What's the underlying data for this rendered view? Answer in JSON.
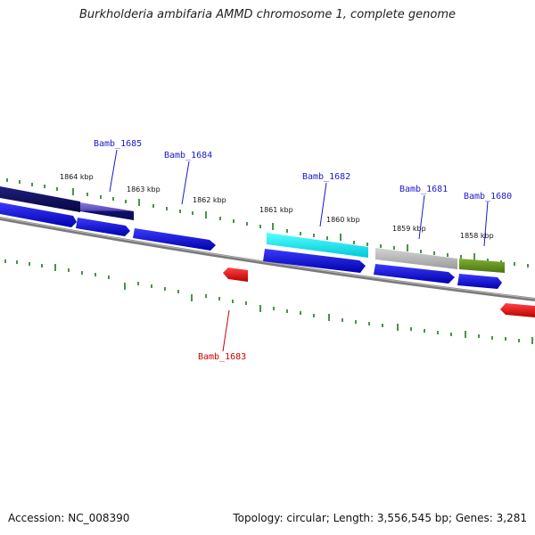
{
  "title": "Burkholderia ambifaria AMMD chromosome 1, complete genome",
  "footer": {
    "accession": "Accession: NC_008390",
    "stats": "Topology: circular; Length: 3,556,545 bp; Genes: 3,281"
  },
  "scale_labels": [
    "1864 kbp",
    "1863 kbp",
    "1862 kbp",
    "1861 kbp",
    "1860 kbp",
    "1859 kbp",
    "1858 kbp"
  ],
  "gene_labels": [
    {
      "name": "Bamb_1685",
      "strand": "forward"
    },
    {
      "name": "Bamb_1684",
      "strand": "forward"
    },
    {
      "name": "Bamb_1682",
      "strand": "forward"
    },
    {
      "name": "Bamb_1681",
      "strand": "forward"
    },
    {
      "name": "Bamb_1680",
      "strand": "forward"
    },
    {
      "name": "Bamb_1683",
      "strand": "reverse"
    }
  ],
  "colors": {
    "forward_label": "#1a1acc",
    "reverse_label": "#cc0000",
    "cds_blue": "#1010e0",
    "reverse_red": "#ee1111",
    "navy": "#0d0d66",
    "cyan": "#22e6e6",
    "grey": "#b8b8b8",
    "olive": "#6a9a22",
    "tick_green": "#1a7a1a",
    "backbone": "#808080"
  }
}
